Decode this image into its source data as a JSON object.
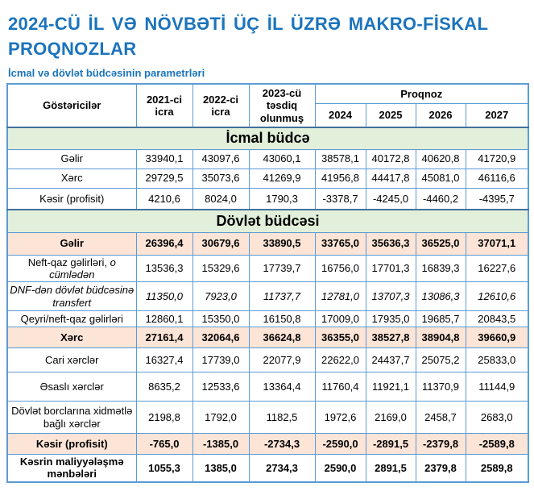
{
  "page": {
    "title": "2024-CÜ İL VƏ NÖVBƏTİ ÜÇ İL ÜZRƏ MAKRO-FİSKAL PROQNOZLAR",
    "subtitle": "İcmal və dövlət büdcəsinin parametrləri"
  },
  "colors": {
    "title_blue": "#1b74bc",
    "border_blue": "#5b9bd5",
    "section_green": "#e2efda",
    "highlight_peach": "#fce4d6",
    "section_border": "#41719c"
  },
  "table": {
    "header": {
      "indicator": "Göstəricilər",
      "col_2021": "2021-ci icra",
      "col_2022": "2022-ci icra",
      "col_2023": "2023-cü təsdiq olunmuş",
      "forecast_label": "Proqnoz",
      "forecast_years": [
        "2024",
        "2025",
        "2026",
        "2027"
      ]
    },
    "rows": [
      {
        "type": "section",
        "label": "İcmal büdcə"
      },
      {
        "type": "row",
        "style": "plain",
        "label_parts": [
          {
            "t": "Gəlir"
          }
        ],
        "values": [
          "33940,1",
          "43097,6",
          "43060,1",
          "38578,1",
          "40172,8",
          "40620,8",
          "41720,9"
        ]
      },
      {
        "type": "row",
        "style": "plain",
        "label_parts": [
          {
            "t": "Xərc"
          }
        ],
        "values": [
          "29729,5",
          "35073,6",
          "41269,9",
          "41956,8",
          "44417,8",
          "45081,0",
          "46116,6"
        ]
      },
      {
        "type": "row",
        "style": "plain",
        "label_parts": [
          {
            "t": "Kəsir (profisit)"
          }
        ],
        "values": [
          "4210,6",
          "8024,0",
          "1790,3",
          "-3378,7",
          "-4245,0",
          "-4460,2",
          "-4395,7"
        ]
      },
      {
        "type": "section",
        "label": "Dövlət büdcəsi"
      },
      {
        "type": "row",
        "style": "highlight",
        "label_parts": [
          {
            "t": "Gəlir"
          }
        ],
        "values": [
          "26396,4",
          "30679,6",
          "33890,5",
          "33765,0",
          "35636,3",
          "36525,0",
          "37071,1"
        ]
      },
      {
        "type": "row",
        "style": "plain",
        "label_parts": [
          {
            "t": "Neft-qaz gəlirləri, "
          },
          {
            "t": "o cümlədən",
            "i": true
          }
        ],
        "values": [
          "13536,3",
          "15329,6",
          "17739,7",
          "16756,0",
          "17701,3",
          "16839,3",
          "16227,6"
        ]
      },
      {
        "type": "row",
        "style": "plain",
        "values_italic": true,
        "label_parts": [
          {
            "t": "DNF-dən dövlət büdcəsinə transfert",
            "i": true
          }
        ],
        "values": [
          "11350,0",
          "7923,0",
          "11737,7",
          "12781,0",
          "13707,3",
          "13086,3",
          "12610,6"
        ]
      },
      {
        "type": "row",
        "style": "plain",
        "label_parts": [
          {
            "t": "Qeyri/neft-qaz gəlirləri"
          }
        ],
        "values": [
          "12860,1",
          "15350,0",
          "16150,8",
          "17009,0",
          "17935,0",
          "19685,7",
          "20843,5"
        ]
      },
      {
        "type": "row",
        "style": "highlight",
        "label_parts": [
          {
            "t": "Xərc"
          }
        ],
        "values": [
          "27161,4",
          "32064,6",
          "36624,8",
          "36355,0",
          "38527,8",
          "38904,8",
          "39660,9"
        ]
      },
      {
        "type": "row",
        "style": "plain",
        "label_parts": [
          {
            "t": "Cari xərclər"
          }
        ],
        "values": [
          "16327,4",
          "17739,0",
          "22077,9",
          "22622,0",
          "24437,7",
          "25075,2",
          "25833,0"
        ]
      },
      {
        "type": "row",
        "style": "plain",
        "label_parts": [
          {
            "t": "Əsaslı xərclər"
          }
        ],
        "values": [
          "8635,2",
          "12533,6",
          "13364,4",
          "11760,4",
          "11921,1",
          "11370,9",
          "11144,9"
        ]
      },
      {
        "type": "row",
        "style": "plain",
        "label_parts": [
          {
            "t": "Dövlət borclarına xidmətlə bağlı xərclər"
          }
        ],
        "values": [
          "2198,8",
          "1792,0",
          "1182,5",
          "1972,6",
          "2169,0",
          "2458,7",
          "2683,0"
        ]
      },
      {
        "type": "row",
        "style": "highlight",
        "label_parts": [
          {
            "t": "Kəsir (profisit)"
          }
        ],
        "values": [
          "-765,0",
          "-1385,0",
          "-2734,3",
          "-2590,0",
          "-2891,5",
          "-2379,8",
          "-2589,8"
        ]
      },
      {
        "type": "row",
        "style": "bold",
        "label_parts": [
          {
            "t": "Kəsrin maliyyələşmə mənbələri"
          }
        ],
        "values": [
          "1055,3",
          "1385,0",
          "2734,3",
          "2590,0",
          "2891,5",
          "2379,8",
          "2589,8"
        ]
      }
    ]
  }
}
